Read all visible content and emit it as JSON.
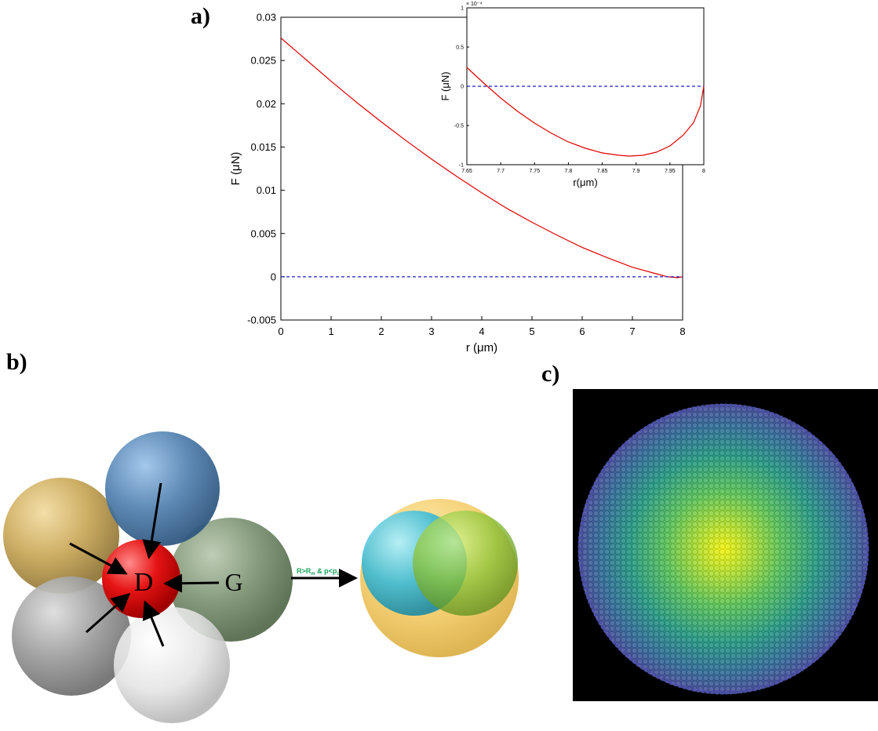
{
  "panels": {
    "a": "a)",
    "b": "b)",
    "c": "c)"
  },
  "chart_data": [
    {
      "type": "line",
      "xlabel": "r (μm)",
      "ylabel": "F (μN)",
      "xlim": [
        0,
        8
      ],
      "ylim": [
        -0.005,
        0.03
      ],
      "xticks": [
        "0",
        "1",
        "2",
        "3",
        "4",
        "5",
        "6",
        "7",
        "8"
      ],
      "xtick_values": [
        0,
        1,
        2,
        3,
        4,
        5,
        6,
        7,
        8
      ],
      "yticks": [
        "-0.005",
        "0",
        "0.005",
        "0.01",
        "0.015",
        "0.02",
        "0.025",
        "0.03"
      ],
      "ytick_values": [
        -0.005,
        0,
        0.005,
        0.01,
        0.015,
        0.02,
        0.025,
        0.03
      ],
      "grid": false,
      "series": [
        {
          "color": "#e00000",
          "x": [
            0,
            0.5,
            1,
            1.5,
            2,
            2.5,
            3,
            3.5,
            4,
            4.5,
            5,
            5.5,
            6,
            6.5,
            7,
            7.5,
            7.7,
            7.9,
            8
          ],
          "y": [
            0.0276,
            0.0251,
            0.0226,
            0.0202,
            0.0179,
            0.0157,
            0.0136,
            0.0116,
            0.0097,
            0.0079,
            0.0063,
            0.0048,
            0.0034,
            0.0022,
            0.0011,
            0.0003,
            0.0,
            -0.0001,
            0.0
          ]
        },
        {
          "color": "#2020c0",
          "dashed": true,
          "x": [
            0,
            8
          ],
          "y": [
            0,
            0
          ]
        }
      ]
    },
    {
      "type": "line",
      "inset": true,
      "xlabel": "r(μm)",
      "ylabel": "F (μN)",
      "exponent_label": "× 10⁻⁴",
      "xlim": [
        7.65,
        8
      ],
      "ylim": [
        -1,
        1
      ],
      "xticks": [
        "7.65",
        "7.7",
        "7.75",
        "7.8",
        "7.85",
        "7.9",
        "7.95",
        "8"
      ],
      "xtick_values": [
        7.65,
        7.7,
        7.75,
        7.8,
        7.85,
        7.9,
        7.95,
        8
      ],
      "yticks": [
        "-1",
        "-0.5",
        "0",
        "0.5",
        "1"
      ],
      "ytick_values": [
        -1,
        -0.5,
        0,
        0.5,
        1
      ],
      "grid": false,
      "series": [
        {
          "color": "#e00000",
          "x": [
            7.65,
            7.675,
            7.7,
            7.725,
            7.75,
            7.775,
            7.8,
            7.825,
            7.85,
            7.875,
            7.89,
            7.91,
            7.93,
            7.95,
            7.97,
            7.985,
            7.995,
            8.0
          ],
          "y": [
            0.24,
            0.04,
            -0.15,
            -0.32,
            -0.47,
            -0.6,
            -0.71,
            -0.79,
            -0.85,
            -0.88,
            -0.89,
            -0.88,
            -0.84,
            -0.76,
            -0.62,
            -0.46,
            -0.25,
            0.0
          ]
        },
        {
          "color": "#2020c0",
          "dashed": true,
          "x": [
            7.65,
            8
          ],
          "y": [
            0,
            0
          ]
        }
      ]
    }
  ],
  "diagram": {
    "center_label": "D",
    "neighbor_label": "G",
    "arrow_label": "R>R",
    "arrow_label_sub": "m",
    "arrow_label_mid": " & p<p",
    "arrow_label_sub2": "c"
  }
}
